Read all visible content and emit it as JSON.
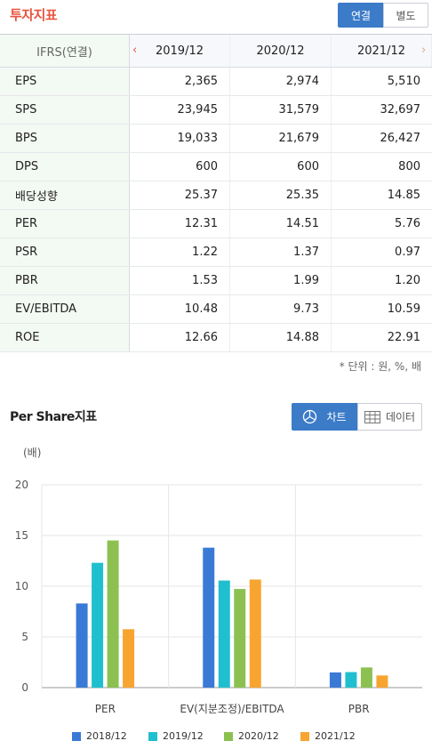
{
  "header": {
    "title": "투자지표",
    "toggle_consolidated": "연결",
    "toggle_separate": "별도"
  },
  "table": {
    "corner_label": "IFRS(연결)",
    "columns": [
      "2019/12",
      "2020/12",
      "2021/12"
    ],
    "rows": [
      {
        "label": "EPS",
        "values": [
          "2,365",
          "2,974",
          "5,510"
        ]
      },
      {
        "label": "SPS",
        "values": [
          "23,945",
          "31,579",
          "32,697"
        ]
      },
      {
        "label": "BPS",
        "values": [
          "19,033",
          "21,679",
          "26,427"
        ]
      },
      {
        "label": "DPS",
        "values": [
          "600",
          "600",
          "800"
        ]
      },
      {
        "label": "배당성향",
        "values": [
          "25.37",
          "25.35",
          "14.85"
        ]
      },
      {
        "label": "PER",
        "values": [
          "12.31",
          "14.51",
          "5.76"
        ]
      },
      {
        "label": "PSR",
        "values": [
          "1.22",
          "1.37",
          "0.97"
        ]
      },
      {
        "label": "PBR",
        "values": [
          "1.53",
          "1.99",
          "1.20"
        ]
      },
      {
        "label": "EV/EBITDA",
        "values": [
          "10.48",
          "9.73",
          "10.59"
        ]
      },
      {
        "label": "ROE",
        "values": [
          "12.66",
          "14.88",
          "22.91"
        ]
      }
    ],
    "unit_note": "* 단위 : 원, %, 배"
  },
  "chart_section": {
    "title": "Per Share지표",
    "chart_button": "차트",
    "data_button": "데이터"
  },
  "chart_data": {
    "type": "bar",
    "ylabel": "(배)",
    "ylim": [
      0,
      20
    ],
    "yticks": [
      "0",
      "5",
      "10",
      "15",
      "20"
    ],
    "categories": [
      "PER",
      "EV(지분조정)/EBITDA",
      "PBR"
    ],
    "grid": true,
    "legend_position": "bottom",
    "series": [
      {
        "name": "2018/12",
        "color": "#3a7ad6",
        "values": [
          8.3,
          13.8,
          1.5
        ]
      },
      {
        "name": "2019/12",
        "color": "#20bfcf",
        "values": [
          12.31,
          10.56,
          1.53
        ]
      },
      {
        "name": "2020/12",
        "color": "#8cc152",
        "values": [
          14.51,
          9.73,
          1.99
        ]
      },
      {
        "name": "2021/12",
        "color": "#f7a530",
        "values": [
          5.76,
          10.66,
          1.2
        ]
      }
    ]
  }
}
